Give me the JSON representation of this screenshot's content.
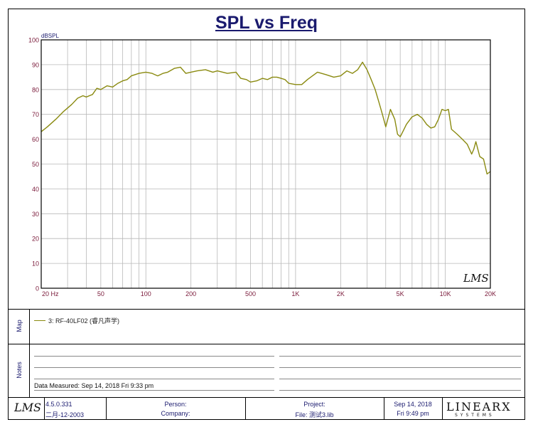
{
  "title": "SPL vs Freq",
  "chart_data": {
    "type": "line",
    "title": "SPL vs Freq",
    "ylabel": "dBSPL",
    "xlabel": "",
    "xscale": "log",
    "xlim": [
      20,
      20000
    ],
    "ylim": [
      0,
      100
    ],
    "grid": true,
    "y_ticks": [
      0,
      10,
      20,
      30,
      40,
      50,
      60,
      70,
      80,
      90,
      100
    ],
    "x_ticks": [
      {
        "value": 20,
        "label": "20 Hz"
      },
      {
        "value": 50,
        "label": "50"
      },
      {
        "value": 100,
        "label": "100"
      },
      {
        "value": 200,
        "label": "200"
      },
      {
        "value": 500,
        "label": "500"
      },
      {
        "value": 1000,
        "label": "1K"
      },
      {
        "value": 2000,
        "label": "2K"
      },
      {
        "value": 5000,
        "label": "5K"
      },
      {
        "value": 10000,
        "label": "10K"
      },
      {
        "value": 20000,
        "label": "20K"
      }
    ],
    "series": [
      {
        "name": "3: RF-40LF02 (睿凡声学)",
        "color": "#8a8a10",
        "x": [
          20,
          22,
          25,
          28,
          32,
          35,
          38,
          40,
          44,
          47,
          50,
          55,
          60,
          65,
          70,
          75,
          80,
          90,
          100,
          110,
          120,
          130,
          140,
          155,
          170,
          185,
          200,
          220,
          250,
          280,
          300,
          350,
          400,
          430,
          470,
          500,
          550,
          600,
          650,
          700,
          750,
          800,
          850,
          900,
          1000,
          1100,
          1200,
          1400,
          1600,
          1800,
          2000,
          2200,
          2400,
          2600,
          2800,
          3000,
          3200,
          3400,
          3600,
          3800,
          4000,
          4300,
          4600,
          4800,
          5000,
          5200,
          5500,
          6000,
          6500,
          7000,
          7500,
          8000,
          8500,
          9000,
          9500,
          10000,
          10500,
          11000,
          12000,
          13000,
          14000,
          15000,
          15500,
          16000,
          17000,
          18000,
          19000,
          20000
        ],
        "y": [
          63,
          65,
          68,
          71,
          74,
          76.5,
          77.5,
          77,
          78,
          80.5,
          80,
          81.5,
          81,
          82.5,
          83.5,
          84,
          85.5,
          86.5,
          87,
          86.5,
          85.5,
          86.5,
          87,
          88.5,
          89,
          86.5,
          87,
          87.5,
          88,
          87,
          87.5,
          86.5,
          87,
          84.5,
          84,
          83,
          83.5,
          84.5,
          84,
          85,
          85,
          84.5,
          84,
          82.5,
          82,
          82,
          84,
          87,
          86,
          85,
          85.5,
          87.5,
          86.5,
          88,
          91,
          88,
          84,
          80,
          75,
          70,
          65,
          72,
          68,
          62,
          61,
          63,
          66,
          69,
          70,
          68.5,
          66,
          64.5,
          65,
          68,
          72,
          71.5,
          72,
          64,
          62,
          60,
          58,
          54,
          56,
          59,
          53,
          52,
          46,
          47
        ]
      }
    ]
  },
  "watermark": "LMS",
  "map": {
    "label": "Map",
    "legend": "3: RF-40LF02 (睿凡声学)"
  },
  "notes": {
    "label": "Notes",
    "measured": "Data Measured: Sep 14, 2018  Fri  9:33 pm"
  },
  "footer": {
    "logo": "LMS",
    "version": "4.5.0.331",
    "build_date": "二月-12-2003",
    "person": "Person:",
    "company": "Company:",
    "project": "Project:",
    "file": "File: 测试3.lib",
    "date": "Sep 14, 2018",
    "time": "Fri  9:49 pm",
    "brand": "LINEARX",
    "brand_sub": "SYSTEMS"
  }
}
